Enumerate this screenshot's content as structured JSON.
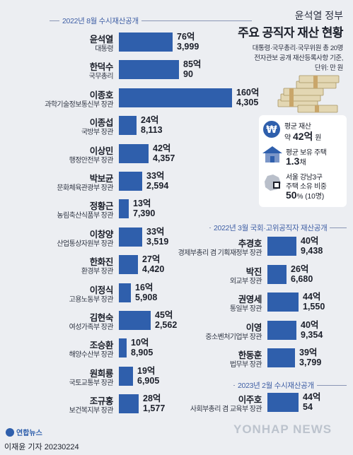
{
  "title": {
    "sub": "윤석열 정부",
    "main": "주요 공직자 재산 현황"
  },
  "note": {
    "line1": "대통령·국무총리·국무위원 총 20명",
    "line2": "전자관보 공개 재산등록사항 기준,",
    "line3": "단위: 만 원"
  },
  "section1": "2022년 8월 수시재산공개",
  "section2": "2022년 3월 국회·고위공직자 재산공개",
  "section3": "2023년 2월 수시재산공개",
  "stats": {
    "avg_label": "평균 재산",
    "avg_prefix": "약 ",
    "avg_value": "42억",
    "avg_unit": " 원",
    "house_label": "평균 보유 주택",
    "house_value": "1.3",
    "house_unit": "채",
    "gangnam_label1": "서울 강남3구",
    "gangnam_label2": "주택 소유 비중",
    "gangnam_value": "50",
    "gangnam_unit": "% (10명)"
  },
  "icons": {
    "won": "won-sign-icon",
    "house": "house-icon",
    "map": "seoul-map-icon",
    "money": "money-stack-icon",
    "logo": "yonhap-logo-icon"
  },
  "colors": {
    "bar": "#2f5fac",
    "accent": "#3f5fa5",
    "background": "#eceef2"
  },
  "footer": "이재윤 기자  20230224",
  "logo_text": "연합뉴스",
  "watermark": "YONHAP NEWS",
  "chart_data": {
    "type": "bar",
    "orientation": "horizontal",
    "unit": "만 원",
    "groups": [
      {
        "label": "2022년 8월 수시재산공개",
        "rows": [
          {
            "name": "윤석열",
            "post": "대통령",
            "value": 763999,
            "eok": "76억",
            "man": "3,999"
          },
          {
            "name": "한덕수",
            "post": "국무총리",
            "value": 850090,
            "eok": "85억",
            "man": "90"
          },
          {
            "name": "이종호",
            "post": "과학기술정보통신부 장관",
            "value": 1604305,
            "eok": "160억",
            "man": "4,305"
          },
          {
            "name": "이종섭",
            "post": "국방부 장관",
            "value": 248113,
            "eok": "24억",
            "man": "8,113"
          },
          {
            "name": "이상민",
            "post": "행정안전부 장관",
            "value": 424357,
            "eok": "42억",
            "man": "4,357"
          },
          {
            "name": "박보균",
            "post": "문화체육관광부 장관",
            "value": 332594,
            "eok": "33억",
            "man": "2,594"
          },
          {
            "name": "정황근",
            "post": "농림축산식품부 장관",
            "value": 137390,
            "eok": "13억",
            "man": "7,390"
          },
          {
            "name": "이창양",
            "post": "산업통상자원부 장관",
            "value": 333519,
            "eok": "33억",
            "man": "3,519"
          },
          {
            "name": "한화진",
            "post": "환경부 장관",
            "value": 274420,
            "eok": "27억",
            "man": "4,420"
          },
          {
            "name": "이정식",
            "post": "고용노동부 장관",
            "value": 165908,
            "eok": "16억",
            "man": "5,908"
          },
          {
            "name": "김현숙",
            "post": "여성가족부 장관",
            "value": 452562,
            "eok": "45억",
            "man": "2,562"
          },
          {
            "name": "조승환",
            "post": "해양수산부 장관",
            "value": 108905,
            "eok": "10억",
            "man": "8,905"
          },
          {
            "name": "원희룡",
            "post": "국토교통부 장관",
            "value": 196905,
            "eok": "19억",
            "man": "6,905"
          },
          {
            "name": "조규홍",
            "post": "보건복지부 장관",
            "value": 281577,
            "eok": "28억",
            "man": "1,577"
          }
        ]
      },
      {
        "label": "2022년 3월 국회·고위공직자 재산공개",
        "rows": [
          {
            "name": "추경호",
            "post": "경제부총리 겸 기획재정부 장관",
            "value": 409438,
            "eok": "40억",
            "man": "9,438"
          },
          {
            "name": "박진",
            "post": "외교부 장관",
            "value": 266680,
            "eok": "26억",
            "man": "6,680"
          },
          {
            "name": "권영세",
            "post": "통일부 장관",
            "value": 441550,
            "eok": "44억",
            "man": "1,550"
          },
          {
            "name": "이영",
            "post": "중소벤처기업부 장관",
            "value": 409354,
            "eok": "40억",
            "man": "9,354"
          },
          {
            "name": "한동훈",
            "post": "법무부 장관",
            "value": 393799,
            "eok": "39억",
            "man": "3,799"
          }
        ]
      },
      {
        "label": "2023년 2월 수시재산공개",
        "rows": [
          {
            "name": "이주호",
            "post": "사회부총리 겸 교육부 장관",
            "value": 440054,
            "eok": "44억",
            "man": "54"
          }
        ]
      }
    ]
  }
}
